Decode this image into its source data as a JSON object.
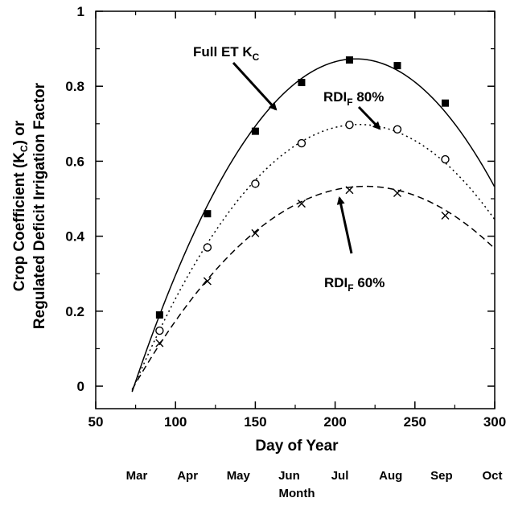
{
  "chart_data": {
    "type": "line",
    "xlabel": "Day of Year",
    "ylabel_line1": "Crop Coefficient (K",
    "ylabel_line1_sub": "C",
    "ylabel_line1_end": ") or",
    "ylabel_line2": "Regulated Deficit Irrigation Factor",
    "xlim": [
      50,
      300
    ],
    "ylim": [
      -0.06,
      1.0
    ],
    "x_ticks": [
      50,
      100,
      150,
      200,
      250,
      300
    ],
    "x_tick_labels": [
      "50",
      "100",
      "150",
      "200",
      "250",
      "300"
    ],
    "y_ticks": [
      0,
      0.2,
      0.4,
      0.6,
      0.8,
      1
    ],
    "y_tick_labels": [
      "0",
      "0.2",
      "0.4",
      "0.6",
      "0.8",
      "1"
    ],
    "secondary_x": {
      "label": "Month",
      "months": [
        "Mar",
        "Apr",
        "May",
        "Jun",
        "Jul",
        "Aug",
        "Sep",
        "Oct"
      ]
    },
    "series": [
      {
        "name": "Full ET KC",
        "marker": "square",
        "line_style": "solid",
        "x": [
          90,
          120,
          150,
          179,
          209,
          239,
          269
        ],
        "y": [
          0.19,
          0.46,
          0.68,
          0.81,
          0.87,
          0.855,
          0.755
        ]
      },
      {
        "name": "RDIF 80%",
        "marker": "circle",
        "line_style": "dotted",
        "x": [
          90,
          120,
          150,
          179,
          209,
          239,
          269
        ],
        "y": [
          0.148,
          0.37,
          0.54,
          0.648,
          0.697,
          0.685,
          0.605
        ]
      },
      {
        "name": "RDIF 60%",
        "marker": "x",
        "line_style": "dashed",
        "x": [
          90,
          120,
          150,
          179,
          209,
          239,
          269
        ],
        "y": [
          0.115,
          0.28,
          0.408,
          0.487,
          0.523,
          0.515,
          0.455
        ]
      }
    ],
    "curves": [
      {
        "series": "Full ET KC",
        "vertex_x": 213,
        "peak": 0.873,
        "x_intercept": 74,
        "x_end": 300
      },
      {
        "series": "RDIF 80%",
        "vertex_x": 215,
        "peak": 0.698,
        "x_intercept": 74,
        "x_end": 300
      },
      {
        "series": "RDIF 60%",
        "vertex_x": 219,
        "peak": 0.533,
        "x_intercept": 74,
        "x_end": 300
      }
    ],
    "annotations": [
      {
        "main": "Full ET K",
        "sub": "C",
        "rest": ""
      },
      {
        "main": "RDI",
        "sub": "F",
        "rest": " 80%"
      },
      {
        "main": "RDI",
        "sub": "F",
        "rest": " 60%"
      }
    ]
  }
}
